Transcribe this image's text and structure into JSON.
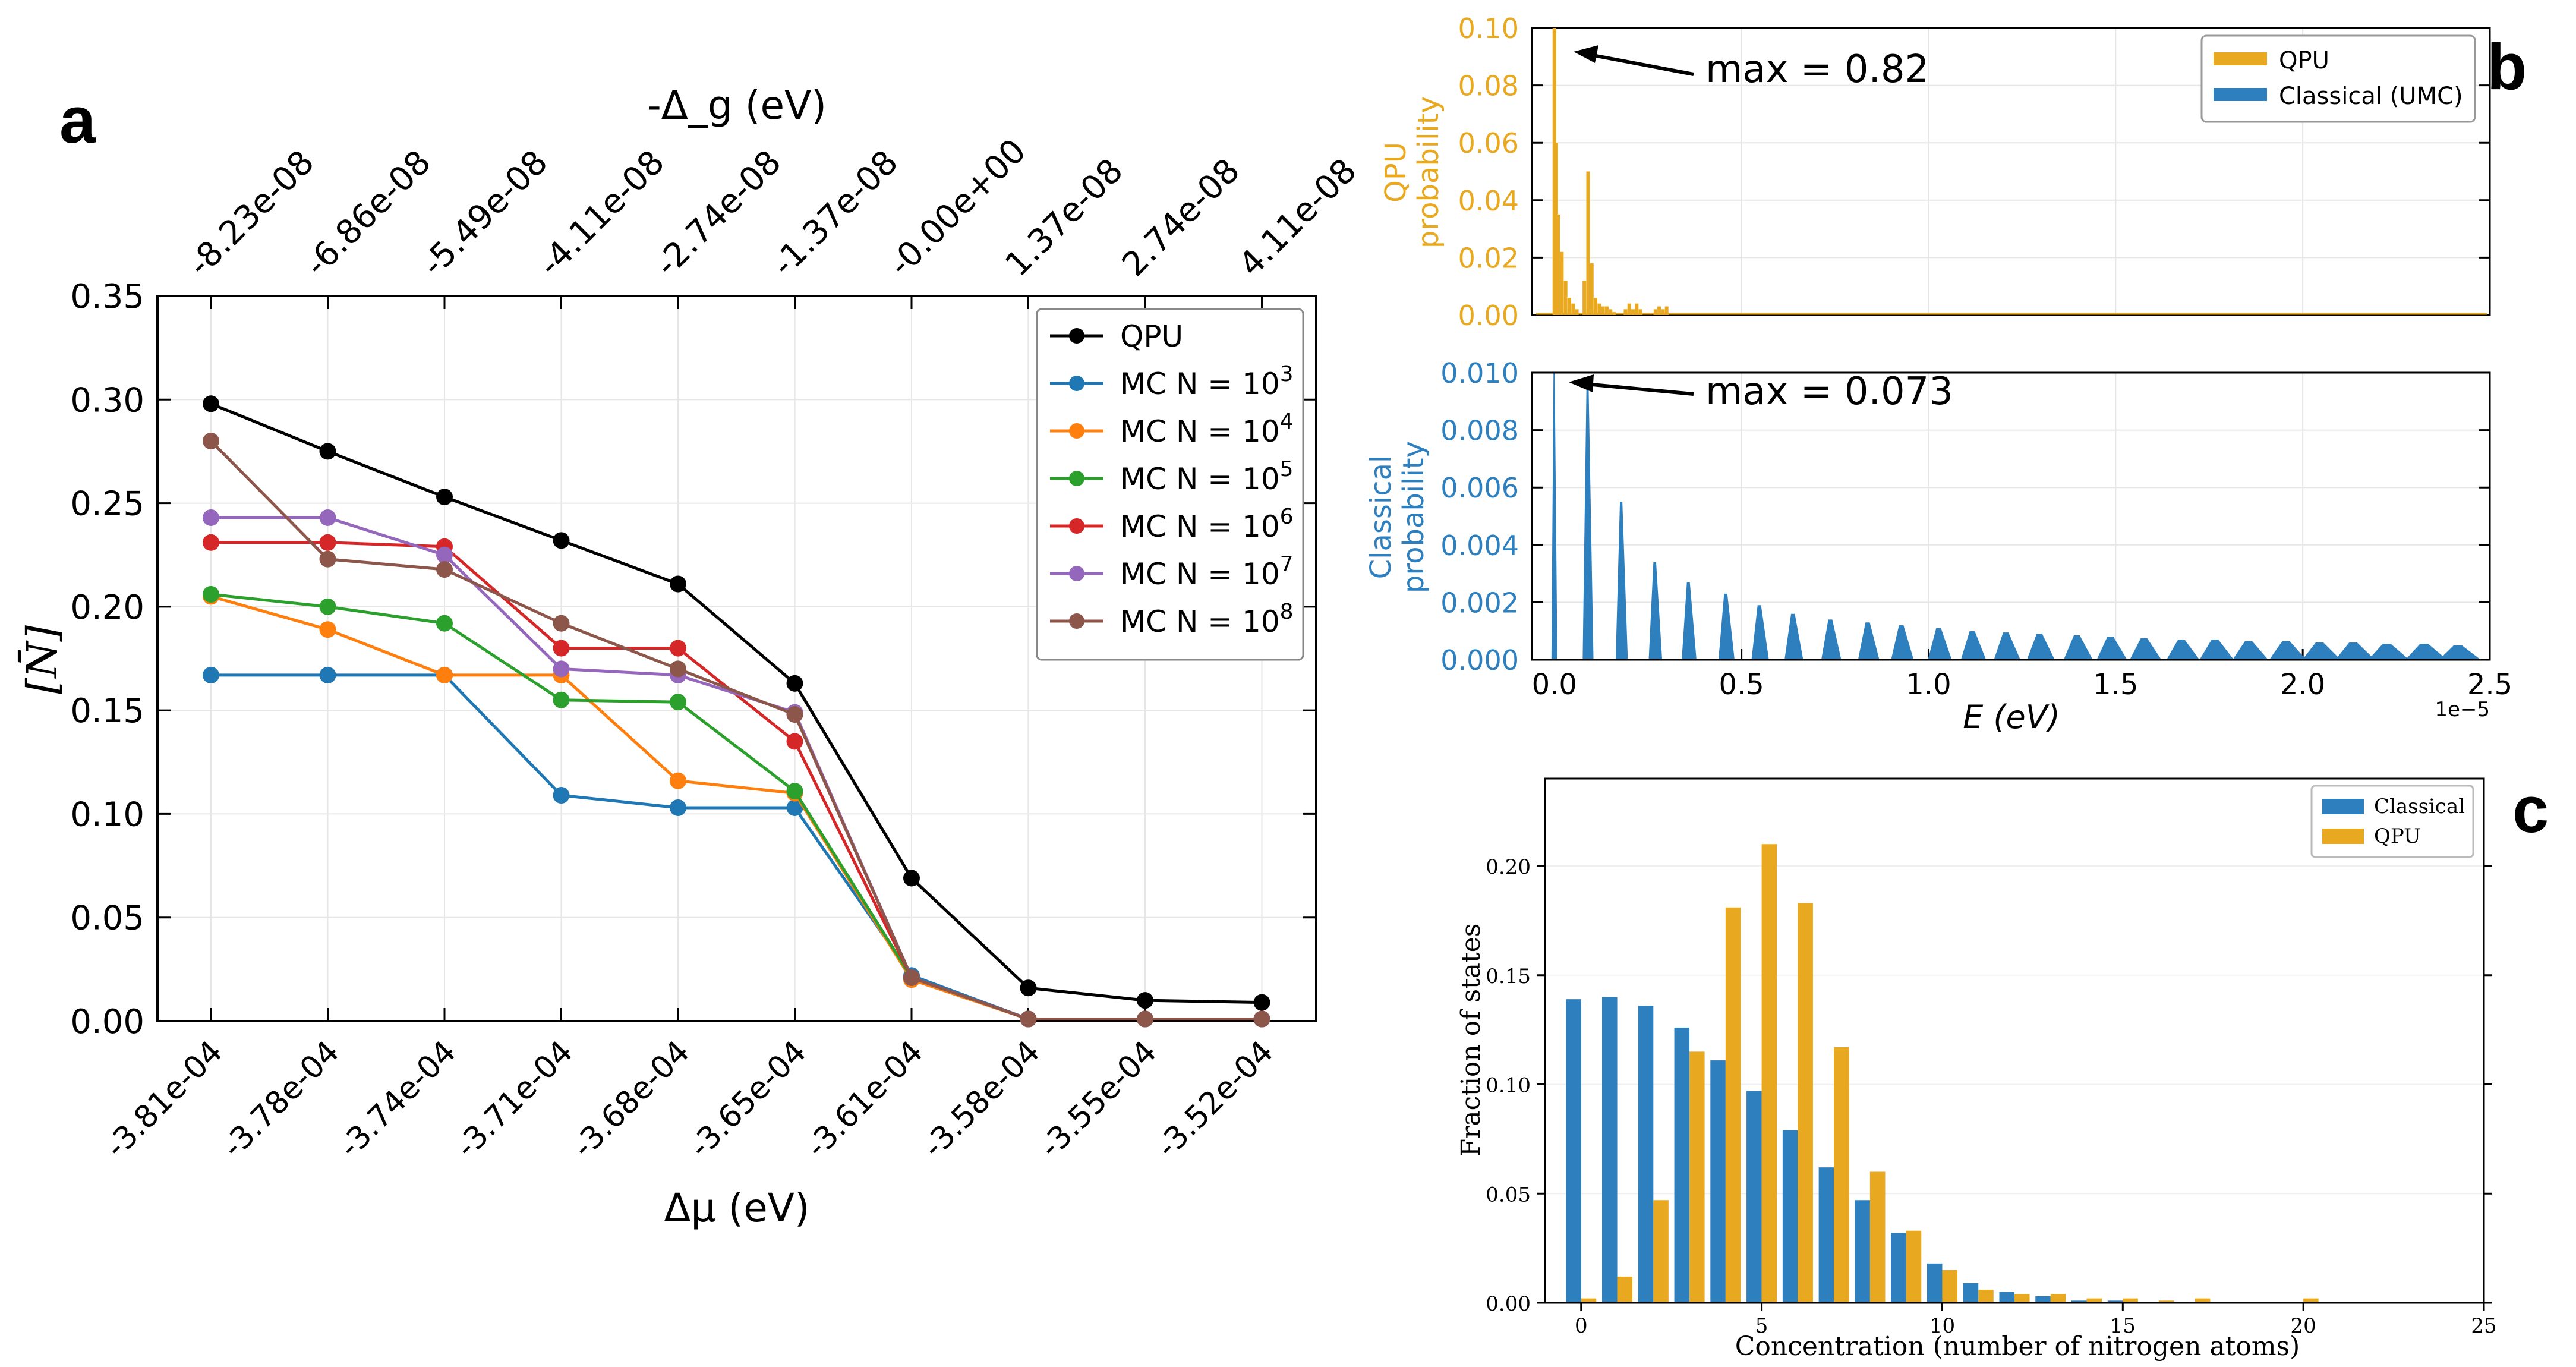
{
  "panel_labels": {
    "a": "a",
    "b": "b",
    "c": "c"
  },
  "colors": {
    "QPU_line": "#000000",
    "MC1e3": "#1f77b4",
    "MC1e4": "#ff7f0e",
    "MC1e5": "#2ca02c",
    "MC1e6": "#d62728",
    "MC1e7": "#9467bd",
    "MC1e8": "#8c564b",
    "qpu_bar": "#E8A820",
    "classical_bar": "#2E7FBE",
    "grid": "#e6e6e6"
  },
  "chart_data": [
    {
      "id": "a",
      "type": "line",
      "title": "",
      "xlabel": "Δμ (eV)",
      "ylabel": "[N̄]",
      "top_xlabel": "-Δ_g (eV)",
      "categories": [
        "-3.81e-04",
        "-3.78e-04",
        "-3.74e-04",
        "-3.71e-04",
        "-3.68e-04",
        "-3.65e-04",
        "-3.61e-04",
        "-3.58e-04",
        "-3.55e-04",
        "-3.52e-04"
      ],
      "top_ticks": [
        "-8.23e-08",
        "-6.86e-08",
        "-5.49e-08",
        "-4.11e-08",
        "-2.74e-08",
        "-1.37e-08",
        "-0.00e+00",
        "1.37e-08",
        "2.74e-08",
        "4.11e-08"
      ],
      "ylim": [
        0,
        0.35
      ],
      "yticks": [
        "0.00",
        "0.05",
        "0.10",
        "0.15",
        "0.20",
        "0.25",
        "0.30",
        "0.35"
      ],
      "series": [
        {
          "name": "QPU",
          "sup": "",
          "color_key": "QPU_line",
          "values": [
            0.298,
            0.275,
            0.253,
            0.232,
            0.211,
            0.163,
            0.069,
            0.016,
            0.01,
            0.009
          ]
        },
        {
          "name": "MC N = 10",
          "sup": "3",
          "color_key": "MC1e3",
          "values": [
            0.167,
            0.167,
            0.167,
            0.109,
            0.103,
            0.103,
            0.022,
            0.001,
            0.001,
            0.001
          ]
        },
        {
          "name": "MC N = 10",
          "sup": "4",
          "color_key": "MC1e4",
          "values": [
            0.205,
            0.189,
            0.167,
            0.167,
            0.116,
            0.11,
            0.02,
            0.001,
            0.001,
            0.001
          ]
        },
        {
          "name": "MC N = 10",
          "sup": "5",
          "color_key": "MC1e5",
          "values": [
            0.206,
            0.2,
            0.192,
            0.155,
            0.154,
            0.111,
            0.021,
            0.001,
            0.001,
            0.001
          ]
        },
        {
          "name": "MC N = 10",
          "sup": "6",
          "color_key": "MC1e6",
          "values": [
            0.231,
            0.231,
            0.229,
            0.18,
            0.18,
            0.135,
            0.021,
            0.001,
            0.001,
            0.001
          ]
        },
        {
          "name": "MC N = 10",
          "sup": "7",
          "color_key": "MC1e7",
          "values": [
            0.243,
            0.243,
            0.225,
            0.17,
            0.167,
            0.149,
            0.021,
            0.001,
            0.001,
            0.001
          ]
        },
        {
          "name": "MC N = 10",
          "sup": "8",
          "color_key": "MC1e8",
          "values": [
            0.28,
            0.223,
            0.218,
            0.192,
            0.17,
            0.148,
            0.021,
            0.001,
            0.001,
            0.001
          ]
        }
      ]
    },
    {
      "id": "b-top",
      "type": "bar",
      "ylabel_lines": [
        "QPU",
        "probability"
      ],
      "ylim": [
        0,
        0.1
      ],
      "yticks": [
        "0.00",
        "0.02",
        "0.04",
        "0.06",
        "0.08",
        "0.10"
      ],
      "xlim": [
        -0.06,
        2.5
      ],
      "annotation": "max = 0.82",
      "legend": [
        "QPU",
        "Classical (UMC)"
      ],
      "x": [
        0.0,
        0.005,
        0.01,
        0.02,
        0.03,
        0.04,
        0.05,
        0.06,
        0.08,
        0.09,
        0.1,
        0.11,
        0.12,
        0.13,
        0.14,
        0.15,
        0.16,
        0.19,
        0.2,
        0.21,
        0.22,
        0.23,
        0.27,
        0.28,
        0.29,
        0.3
      ],
      "values": [
        0.1,
        0.06,
        0.035,
        0.022,
        0.012,
        0.006,
        0.004,
        0.002,
        0.012,
        0.05,
        0.018,
        0.006,
        0.004,
        0.003,
        0.003,
        0.002,
        0.001,
        0.002,
        0.004,
        0.002,
        0.004,
        0.002,
        0.002,
        0.003,
        0.002,
        0.003
      ]
    },
    {
      "id": "b-bottom",
      "type": "bar",
      "ylabel_lines": [
        "Classical",
        "probability"
      ],
      "xlabel": "E (eV)",
      "x_multiplier": "1e−5",
      "ylim": [
        0,
        0.01
      ],
      "yticks": [
        "0.000",
        "0.002",
        "0.004",
        "0.006",
        "0.008",
        "0.010"
      ],
      "xlim": [
        -0.06,
        2.5
      ],
      "xticks": [
        "0.0",
        "0.5",
        "1.0",
        "1.5",
        "2.0",
        "2.5"
      ],
      "annotation": "max = 0.073",
      "peaks_x": [
        0.0,
        0.09,
        0.18,
        0.27,
        0.36,
        0.46,
        0.55,
        0.64,
        0.74,
        0.84,
        0.93,
        1.03,
        1.12,
        1.21,
        1.3,
        1.4,
        1.49,
        1.58,
        1.68,
        1.77,
        1.86,
        1.96,
        2.05,
        2.14,
        2.23,
        2.33,
        2.42
      ],
      "peaks_height": [
        0.01,
        0.0095,
        0.0055,
        0.0034,
        0.0027,
        0.0023,
        0.0019,
        0.0016,
        0.0014,
        0.0013,
        0.0012,
        0.0011,
        0.001,
        0.00095,
        0.0009,
        0.00085,
        0.0008,
        0.00075,
        0.0007,
        0.0007,
        0.00065,
        0.00065,
        0.0006,
        0.0006,
        0.00055,
        0.00055,
        0.0005
      ]
    },
    {
      "id": "c",
      "type": "bar",
      "xlabel": "Concentration (number of nitrogen atoms)",
      "ylabel": "Fraction of states",
      "ylim": [
        0,
        0.24
      ],
      "xlim": [
        -1,
        25
      ],
      "yticks": [
        "0.00",
        "0.05",
        "0.10",
        "0.15",
        "0.20"
      ],
      "xticks": [
        "0",
        "5",
        "10",
        "15",
        "20",
        "25"
      ],
      "legend": [
        "Classical",
        "QPU"
      ],
      "categories": [
        0,
        1,
        2,
        3,
        4,
        5,
        6,
        7,
        8,
        9,
        10,
        11,
        12,
        13,
        14,
        15,
        16,
        17,
        18,
        19,
        20
      ],
      "series": [
        {
          "name": "Classical",
          "values": [
            0.139,
            0.14,
            0.136,
            0.126,
            0.111,
            0.097,
            0.079,
            0.062,
            0.047,
            0.032,
            0.018,
            0.009,
            0.005,
            0.003,
            0.001,
            0.001,
            0.0,
            0.0,
            0.0,
            0.0,
            0.0
          ]
        },
        {
          "name": "QPU",
          "values": [
            0.002,
            0.012,
            0.047,
            0.115,
            0.181,
            0.21,
            0.183,
            0.117,
            0.06,
            0.033,
            0.015,
            0.006,
            0.004,
            0.004,
            0.002,
            0.002,
            0.001,
            0.002,
            0.0,
            0.0,
            0.002
          ]
        }
      ]
    }
  ]
}
